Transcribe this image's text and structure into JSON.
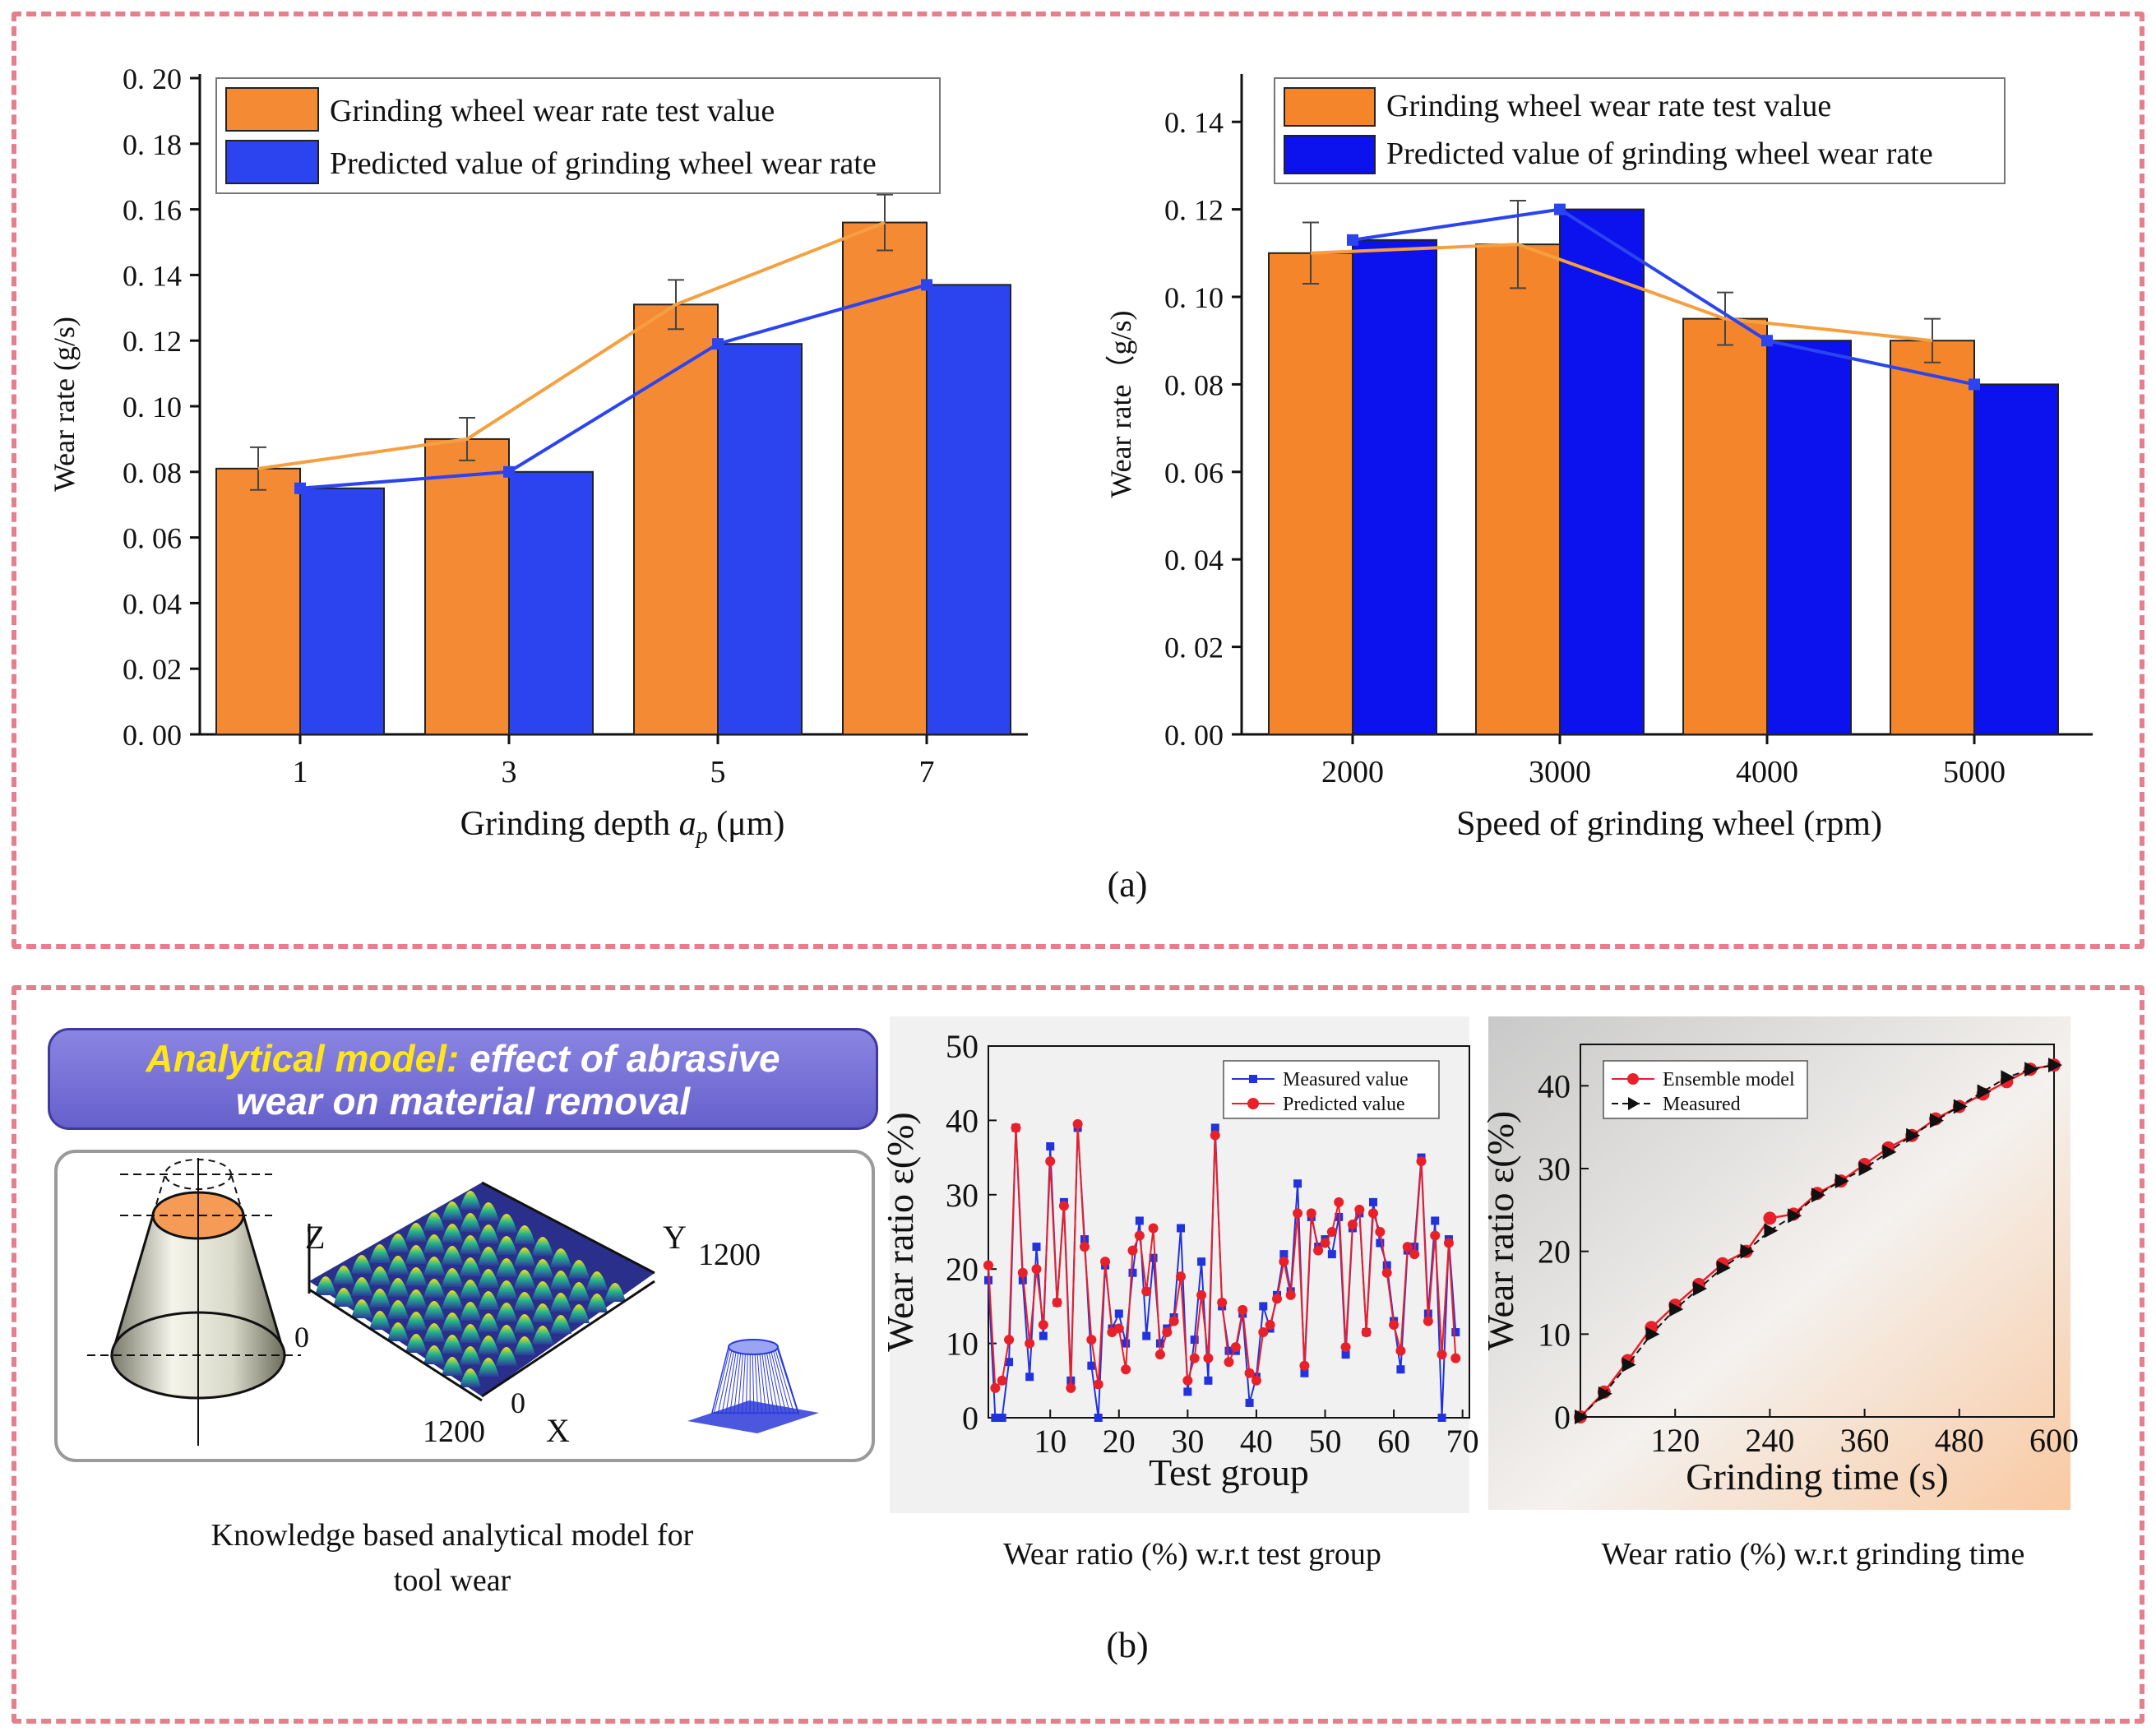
{
  "panel_a": {
    "label": "(a)"
  },
  "panel_b": {
    "label": "(b)"
  },
  "colors": {
    "test": "#f5852a",
    "test_left": "#f58a35",
    "pred": "#2b44f0",
    "pred_right": "#0c12ee",
    "meas_b": "#2233dd",
    "pred_b": "#e8202a",
    "border": "#e57f8c"
  },
  "chart_data": [
    {
      "type": "bar",
      "title": "",
      "xlabel_main": "Grinding depth ",
      "xlabel_sym": "a",
      "xlabel_sub": "p",
      "xlabel_unit": " (μm)",
      "ylabel": "Wear rate (g/s)",
      "ylim": [
        0,
        0.2
      ],
      "yticks": [
        "0.00",
        "0.02",
        "0.04",
        "0.06",
        "0.08",
        "0.10",
        "0.12",
        "0.14",
        "0.16",
        "0.18",
        "0.20"
      ],
      "categories": [
        "1",
        "3",
        "5",
        "7"
      ],
      "series": [
        {
          "name": "Grinding wheel wear rate test value",
          "values": [
            0.081,
            0.09,
            0.131,
            0.156
          ],
          "errors": [
            0.0065,
            0.0065,
            0.0075,
            0.0085
          ]
        },
        {
          "name": "Predicted value of grinding wheel wear rate",
          "values": [
            0.075,
            0.08,
            0.119,
            0.137
          ]
        }
      ],
      "legend": "top-left"
    },
    {
      "type": "bar",
      "title": "",
      "xlabel": "Speed of grinding wheel (rpm)",
      "ylabel": "Wear rate（g/s)",
      "ylim": [
        0,
        0.15
      ],
      "yticks": [
        "0.00",
        "0.02",
        "0.04",
        "0.06",
        "0.08",
        "0.10",
        "0.12",
        "0.14"
      ],
      "categories": [
        "2000",
        "3000",
        "4000",
        "5000"
      ],
      "series": [
        {
          "name": "Grinding wheel wear rate test value",
          "values": [
            0.11,
            0.112,
            0.095,
            0.09
          ],
          "errors": [
            0.007,
            0.01,
            0.006,
            0.005
          ]
        },
        {
          "name": "Predicted value of grinding wheel wear rate",
          "values": [
            0.113,
            0.12,
            0.09,
            0.08
          ]
        }
      ],
      "legend": "top"
    },
    {
      "type": "line",
      "title": "Wear ratio (%) w.r.t test group",
      "xlabel": "Test group",
      "ylabel": "Wear ratio ε(%)",
      "xlim": [
        1,
        71
      ],
      "ylim": [
        0,
        50
      ],
      "xticks": [
        "10",
        "20",
        "30",
        "40",
        "50",
        "60",
        "70"
      ],
      "yticks": [
        "0",
        "10",
        "20",
        "30",
        "40",
        "50"
      ],
      "series": [
        {
          "name": "Measured value",
          "values": [
            18.5,
            0,
            0,
            7.5,
            39,
            18.5,
            5.5,
            23,
            11,
            36.5,
            15.5,
            29,
            5,
            39,
            24,
            7,
            0,
            20.5,
            12,
            14,
            10,
            19.5,
            26.5,
            11,
            21.5,
            10,
            12,
            13.5,
            25.5,
            3.5,
            10.5,
            21,
            5,
            39,
            15,
            9,
            9,
            14,
            2,
            5.5,
            15,
            12,
            16.5,
            22,
            17,
            31.5,
            6,
            27,
            23,
            24,
            22,
            27,
            8.5,
            25.5,
            27.5,
            11.5,
            29,
            23.5,
            20.5,
            13,
            6.5,
            22.5,
            23,
            35,
            14,
            26.5,
            0,
            24,
            11.5
          ]
        },
        {
          "name": "Predicted value",
          "values": [
            20.5,
            4,
            5,
            10.5,
            39,
            19.5,
            10,
            20,
            12.5,
            34.5,
            15.5,
            28.5,
            4,
            39.5,
            23,
            10.5,
            4.5,
            21,
            11.5,
            12,
            6.5,
            22.5,
            24.5,
            17,
            25.5,
            8.5,
            11.5,
            13,
            19,
            5,
            8,
            16.5,
            8,
            38,
            15.5,
            7.5,
            9.5,
            14.5,
            6,
            5,
            11.5,
            12.5,
            16,
            21,
            16.5,
            27.5,
            7,
            27.5,
            22.5,
            23.5,
            25,
            29,
            9.5,
            26,
            28,
            11.5,
            27.5,
            25,
            19.5,
            12.5,
            9,
            23,
            22,
            34.5,
            13,
            24.5,
            8.5,
            23.5,
            8
          ]
        }
      ],
      "legend": "top-right"
    },
    {
      "type": "line",
      "title": "Wear ratio (%) w.r.t grinding time",
      "xlabel": "Grinding time (s)",
      "ylabel": "Wear ratio ε(%)",
      "xlim": [
        0,
        600
      ],
      "ylim": [
        0,
        45
      ],
      "xticks": [
        "120",
        "240",
        "360",
        "480",
        "600"
      ],
      "yticks": [
        "0",
        "10",
        "20",
        "30",
        "40"
      ],
      "x": [
        0,
        30,
        60,
        90,
        120,
        150,
        180,
        210,
        240,
        270,
        300,
        330,
        360,
        390,
        420,
        450,
        480,
        510,
        540,
        570,
        600
      ],
      "series": [
        {
          "name": "Ensemble model",
          "values": [
            0,
            3,
            6.8,
            10.8,
            13.5,
            16,
            18.5,
            20,
            24,
            24.5,
            27,
            28.5,
            30.5,
            32.5,
            34,
            36,
            37.5,
            39,
            40.5,
            42,
            42.5
          ]
        },
        {
          "name": "Measured",
          "values": [
            0,
            2.8,
            6.3,
            10,
            13,
            15.5,
            18,
            20,
            22.5,
            24.3,
            26.8,
            28.5,
            30,
            32,
            34,
            35.8,
            37.5,
            39.3,
            41,
            42,
            42.5
          ]
        }
      ],
      "legend": "top-left"
    }
  ],
  "analytical": {
    "banner_highlight": "Analytical model:",
    "banner_rest1": " effect of abrasive",
    "banner_line2": "wear on material removal",
    "axis_z": "Z",
    "axis_y": "Y",
    "axis_x": "X",
    "tick_y": "1200",
    "tick_x": "1200",
    "zero_left": "0",
    "zero_bottom": "0",
    "caption_line1": "Knowledge based analytical  model for",
    "caption_line2": "tool wear"
  }
}
